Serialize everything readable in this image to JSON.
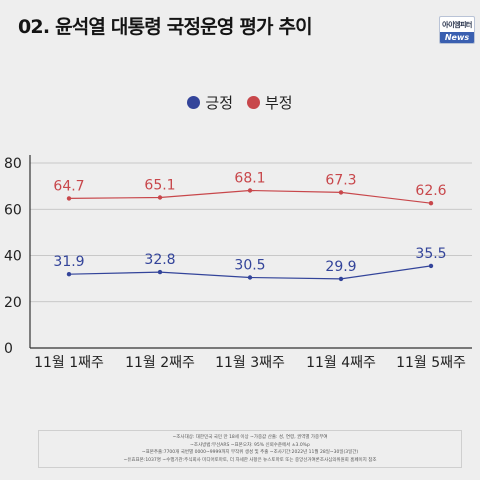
{
  "header": {
    "title": "02. 윤석열 대통령 국정운영 평가 추이",
    "logo_top": "아이엠피터",
    "logo_bottom": "News"
  },
  "colors": {
    "positive": "#33449a",
    "negative": "#c8474b",
    "axis": "#333333",
    "grid": "#bbbbbb"
  },
  "chart_data": {
    "type": "line",
    "title": "",
    "xlabel": "",
    "ylabel": "",
    "categories": [
      "11월 1째주",
      "11월 2째주",
      "11월 3째주",
      "11월 4째주",
      "11월 5째주"
    ],
    "ylim": [
      0,
      80
    ],
    "yticks": [
      "0",
      "20",
      "40",
      "60",
      "80"
    ],
    "grid": true,
    "legend_position": "top-center",
    "series": [
      {
        "name": "긍정",
        "values": [
          31.9,
          32.8,
          30.5,
          29.9,
          35.5
        ],
        "color": "#33449a",
        "labels": [
          "31.9",
          "32.8",
          "30.5",
          "29.9",
          "35.5"
        ]
      },
      {
        "name": "부정",
        "values": [
          64.7,
          65.1,
          68.1,
          67.3,
          62.6
        ],
        "color": "#c8474b",
        "labels": [
          "64.7",
          "65.1",
          "68.1",
          "67.3",
          "62.6"
        ]
      }
    ]
  },
  "footnotes": [
    "~조사대상: 대한민국 국민 만 18세 이상 ~가중값 산출: 성, 연령, 권역별 가중부여",
    "~조사방법:무선ARS ~표본오차: 95% 신뢰수준에서 ±3.0%p",
    "~표본추출:7700개 국번별 0000~9999까지 무작위 생성 및 추출 ~조사기간:2022년 11월 28일~30일(3일간)",
    "~유효표본:1037명 ~수행기관:주식회사 미디어토마토, 더 자세한 사항은 뉴스토마토 또는 중앙선거여론조사심의위원회 홈페이지 참조"
  ]
}
